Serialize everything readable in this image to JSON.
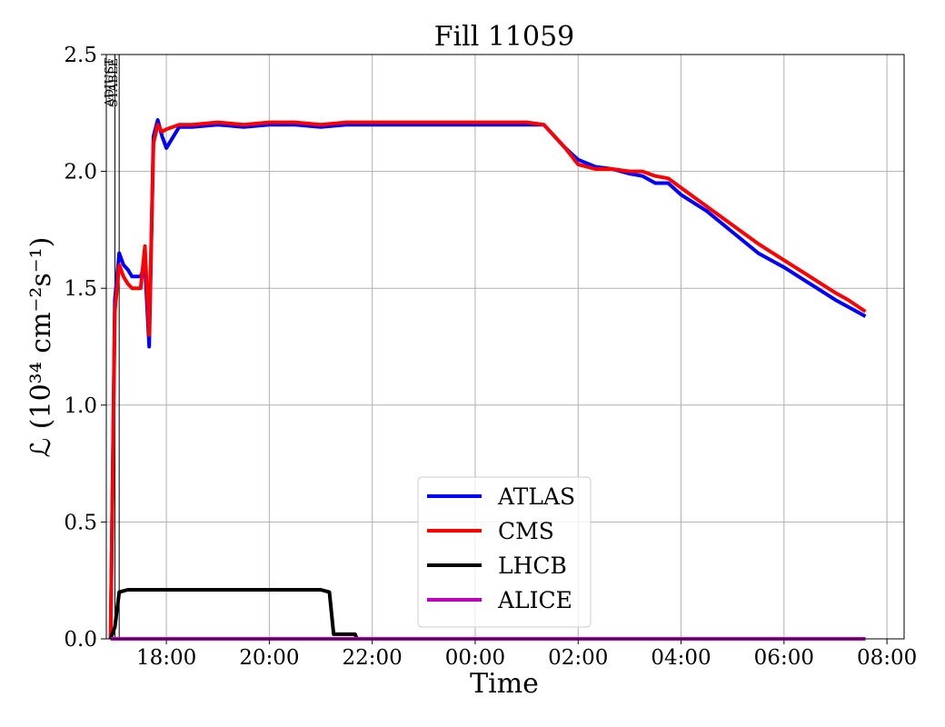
{
  "chart_data": {
    "type": "line",
    "title": "Fill 11059",
    "xlabel": "Time",
    "ylabel": "ℒ (10³⁴ cm⁻²s⁻¹)",
    "x_ticks": [
      "18:00",
      "20:00",
      "22:00",
      "00:00",
      "02:00",
      "04:00",
      "06:00",
      "08:00"
    ],
    "y_ticks": [
      "0.0",
      "0.5",
      "1.0",
      "1.5",
      "2.0",
      "2.5"
    ],
    "xlim": [
      "16:50",
      "08:20"
    ],
    "ylim": [
      0,
      2.5
    ],
    "grid": true,
    "legend_position": "lower-center",
    "annotations": [
      {
        "text": "ADJUST",
        "x": "17:00"
      },
      {
        "text": "STABLE",
        "x": "17:05"
      }
    ],
    "series": [
      {
        "name": "ATLAS",
        "color": "#0000ff",
        "points": [
          [
            "16:55",
            0.0
          ],
          [
            "17:00",
            1.45
          ],
          [
            "17:05",
            1.65
          ],
          [
            "17:10",
            1.6
          ],
          [
            "17:15",
            1.58
          ],
          [
            "17:20",
            1.55
          ],
          [
            "17:30",
            1.55
          ],
          [
            "17:35",
            1.6
          ],
          [
            "17:40",
            1.25
          ],
          [
            "17:45",
            2.15
          ],
          [
            "17:50",
            2.22
          ],
          [
            "17:55",
            2.15
          ],
          [
            "18:00",
            2.1
          ],
          [
            "18:15",
            2.19
          ],
          [
            "18:30",
            2.19
          ],
          [
            "19:00",
            2.2
          ],
          [
            "19:30",
            2.19
          ],
          [
            "20:00",
            2.2
          ],
          [
            "20:30",
            2.2
          ],
          [
            "21:00",
            2.19
          ],
          [
            "21:30",
            2.2
          ],
          [
            "22:00",
            2.2
          ],
          [
            "22:30",
            2.2
          ],
          [
            "23:00",
            2.2
          ],
          [
            "23:30",
            2.2
          ],
          [
            "00:00",
            2.2
          ],
          [
            "00:30",
            2.2
          ],
          [
            "01:00",
            2.2
          ],
          [
            "01:20",
            2.2
          ],
          [
            "01:45",
            2.1
          ],
          [
            "02:00",
            2.05
          ],
          [
            "02:20",
            2.02
          ],
          [
            "02:40",
            2.01
          ],
          [
            "03:00",
            1.99
          ],
          [
            "03:15",
            1.98
          ],
          [
            "03:30",
            1.95
          ],
          [
            "03:45",
            1.95
          ],
          [
            "04:00",
            1.9
          ],
          [
            "04:30",
            1.83
          ],
          [
            "05:00",
            1.74
          ],
          [
            "05:30",
            1.65
          ],
          [
            "06:00",
            1.59
          ],
          [
            "06:30",
            1.52
          ],
          [
            "07:00",
            1.45
          ],
          [
            "07:15",
            1.42
          ],
          [
            "07:35",
            1.38
          ]
        ]
      },
      {
        "name": "CMS",
        "color": "#ff0000",
        "points": [
          [
            "16:55",
            0.0
          ],
          [
            "17:00",
            1.4
          ],
          [
            "17:05",
            1.6
          ],
          [
            "17:10",
            1.55
          ],
          [
            "17:15",
            1.52
          ],
          [
            "17:20",
            1.5
          ],
          [
            "17:30",
            1.5
          ],
          [
            "17:35",
            1.68
          ],
          [
            "17:40",
            1.3
          ],
          [
            "17:45",
            2.12
          ],
          [
            "17:50",
            2.2
          ],
          [
            "17:55",
            2.17
          ],
          [
            "18:00",
            2.18
          ],
          [
            "18:15",
            2.2
          ],
          [
            "18:30",
            2.2
          ],
          [
            "19:00",
            2.21
          ],
          [
            "19:30",
            2.2
          ],
          [
            "20:00",
            2.21
          ],
          [
            "20:30",
            2.21
          ],
          [
            "21:00",
            2.2
          ],
          [
            "21:30",
            2.21
          ],
          [
            "22:00",
            2.21
          ],
          [
            "22:30",
            2.21
          ],
          [
            "23:00",
            2.21
          ],
          [
            "23:30",
            2.21
          ],
          [
            "00:00",
            2.21
          ],
          [
            "00:30",
            2.21
          ],
          [
            "01:00",
            2.21
          ],
          [
            "01:20",
            2.2
          ],
          [
            "01:45",
            2.1
          ],
          [
            "02:00",
            2.03
          ],
          [
            "02:20",
            2.01
          ],
          [
            "02:40",
            2.01
          ],
          [
            "03:00",
            2.0
          ],
          [
            "03:15",
            2.0
          ],
          [
            "03:30",
            1.98
          ],
          [
            "03:45",
            1.97
          ],
          [
            "04:00",
            1.93
          ],
          [
            "04:30",
            1.85
          ],
          [
            "05:00",
            1.77
          ],
          [
            "05:30",
            1.69
          ],
          [
            "06:00",
            1.62
          ],
          [
            "06:30",
            1.55
          ],
          [
            "07:00",
            1.48
          ],
          [
            "07:15",
            1.45
          ],
          [
            "07:35",
            1.4
          ]
        ]
      },
      {
        "name": "LHCB",
        "color": "#000000",
        "points": [
          [
            "16:55",
            0.0
          ],
          [
            "17:00",
            0.05
          ],
          [
            "17:05",
            0.2
          ],
          [
            "17:15",
            0.21
          ],
          [
            "18:00",
            0.21
          ],
          [
            "19:00",
            0.21
          ],
          [
            "20:00",
            0.21
          ],
          [
            "21:00",
            0.21
          ],
          [
            "21:10",
            0.2
          ],
          [
            "21:15",
            0.02
          ],
          [
            "21:40",
            0.02
          ],
          [
            "21:42",
            0.0
          ]
        ]
      },
      {
        "name": "ALICE",
        "color": "#bf00bf",
        "points": [
          [
            "16:55",
            0.0
          ],
          [
            "07:35",
            0.0
          ]
        ]
      }
    ]
  }
}
